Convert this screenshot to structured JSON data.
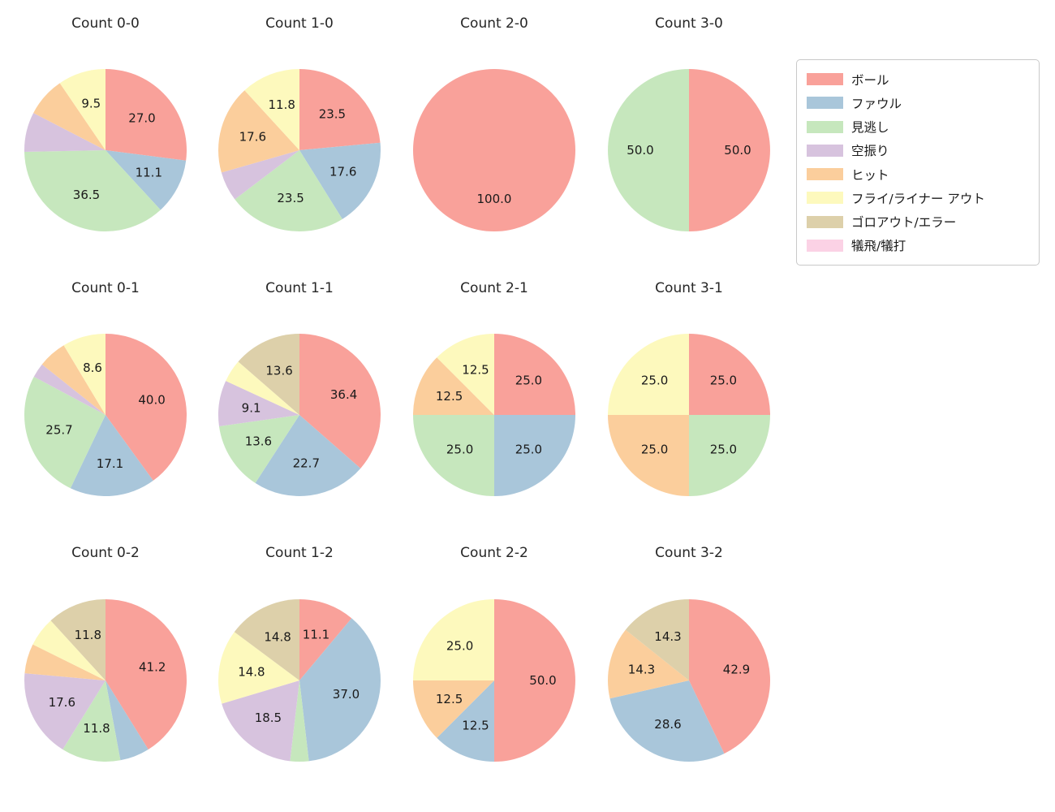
{
  "page": {
    "background": "#ffffff"
  },
  "legend": {
    "items": [
      {
        "label": "ボール",
        "color": "#f9a19a"
      },
      {
        "label": "ファウル",
        "color": "#a9c6da"
      },
      {
        "label": "見逃し",
        "color": "#c6e7bd"
      },
      {
        "label": "空振り",
        "color": "#d7c3de"
      },
      {
        "label": "ヒット",
        "color": "#fbce9c"
      },
      {
        "label": "フライ/ライナー アウト",
        "color": "#fdf9bd"
      },
      {
        "label": "ゴロアウト/エラー",
        "color": "#ddd0aa"
      },
      {
        "label": "犠飛/犠打",
        "color": "#fbd2e5"
      }
    ]
  },
  "chart_data": [
    {
      "type": "pie",
      "title": "Count 0-0",
      "position": {
        "row": 0,
        "col": 0
      },
      "start": "top",
      "direction": "clockwise",
      "slices": [
        {
          "category": "ボール",
          "value": 27.0,
          "text": "27.0"
        },
        {
          "category": "ファウル",
          "value": 11.1,
          "text": "11.1"
        },
        {
          "category": "見逃し",
          "value": 36.5,
          "text": "36.5"
        },
        {
          "category": "空振り",
          "value": 7.9,
          "text": ""
        },
        {
          "category": "ヒット",
          "value": 7.9,
          "text": ""
        },
        {
          "category": "フライ/ライナー アウト",
          "value": 9.5,
          "text": "9.5"
        }
      ]
    },
    {
      "type": "pie",
      "title": "Count 1-0",
      "position": {
        "row": 0,
        "col": 1
      },
      "start": "top",
      "direction": "clockwise",
      "slices": [
        {
          "category": "ボール",
          "value": 23.5,
          "text": "23.5"
        },
        {
          "category": "ファウル",
          "value": 17.6,
          "text": "17.6"
        },
        {
          "category": "見逃し",
          "value": 23.5,
          "text": "23.5"
        },
        {
          "category": "空振り",
          "value": 5.9,
          "text": ""
        },
        {
          "category": "ヒット",
          "value": 17.6,
          "text": "17.6"
        },
        {
          "category": "フライ/ライナー アウト",
          "value": 11.8,
          "text": "11.8"
        }
      ]
    },
    {
      "type": "pie",
      "title": "Count 2-0",
      "position": {
        "row": 0,
        "col": 2
      },
      "start": "top",
      "direction": "clockwise",
      "slices": [
        {
          "category": "ボール",
          "value": 100.0,
          "text": "100.0"
        }
      ]
    },
    {
      "type": "pie",
      "title": "Count 3-0",
      "position": {
        "row": 0,
        "col": 3
      },
      "start": "top",
      "direction": "clockwise",
      "slices": [
        {
          "category": "ボール",
          "value": 50.0,
          "text": "50.0"
        },
        {
          "category": "見逃し",
          "value": 50.0,
          "text": "50.0"
        }
      ]
    },
    {
      "type": "pie",
      "title": "Count 0-1",
      "position": {
        "row": 1,
        "col": 0
      },
      "start": "top",
      "direction": "clockwise",
      "slices": [
        {
          "category": "ボール",
          "value": 40.0,
          "text": "40.0"
        },
        {
          "category": "ファウル",
          "value": 17.1,
          "text": "17.1"
        },
        {
          "category": "見逃し",
          "value": 25.7,
          "text": "25.7"
        },
        {
          "category": "空振り",
          "value": 2.9,
          "text": ""
        },
        {
          "category": "ヒット",
          "value": 5.7,
          "text": ""
        },
        {
          "category": "フライ/ライナー アウト",
          "value": 8.6,
          "text": "8.6"
        }
      ]
    },
    {
      "type": "pie",
      "title": "Count 1-1",
      "position": {
        "row": 1,
        "col": 1
      },
      "start": "top",
      "direction": "clockwise",
      "slices": [
        {
          "category": "ボール",
          "value": 36.4,
          "text": "36.4"
        },
        {
          "category": "ファウル",
          "value": 22.7,
          "text": "22.7"
        },
        {
          "category": "見逃し",
          "value": 13.6,
          "text": "13.6"
        },
        {
          "category": "空振り",
          "value": 9.1,
          "text": "9.1"
        },
        {
          "category": "フライ/ライナー アウト",
          "value": 4.5,
          "text": ""
        },
        {
          "category": "ゴロアウト/エラー",
          "value": 13.6,
          "text": "13.6"
        }
      ]
    },
    {
      "type": "pie",
      "title": "Count 2-1",
      "position": {
        "row": 1,
        "col": 2
      },
      "start": "top",
      "direction": "clockwise",
      "slices": [
        {
          "category": "ボール",
          "value": 25.0,
          "text": "25.0"
        },
        {
          "category": "ファウル",
          "value": 25.0,
          "text": "25.0"
        },
        {
          "category": "見逃し",
          "value": 25.0,
          "text": "25.0"
        },
        {
          "category": "ヒット",
          "value": 12.5,
          "text": "12.5"
        },
        {
          "category": "フライ/ライナー アウト",
          "value": 12.5,
          "text": "12.5"
        }
      ]
    },
    {
      "type": "pie",
      "title": "Count 3-1",
      "position": {
        "row": 1,
        "col": 3
      },
      "start": "top",
      "direction": "clockwise",
      "slices": [
        {
          "category": "ボール",
          "value": 25.0,
          "text": "25.0"
        },
        {
          "category": "見逃し",
          "value": 25.0,
          "text": "25.0"
        },
        {
          "category": "ヒット",
          "value": 25.0,
          "text": "25.0"
        },
        {
          "category": "フライ/ライナー アウト",
          "value": 25.0,
          "text": "25.0"
        }
      ]
    },
    {
      "type": "pie",
      "title": "Count 0-2",
      "position": {
        "row": 2,
        "col": 0
      },
      "start": "top",
      "direction": "clockwise",
      "slices": [
        {
          "category": "ボール",
          "value": 41.2,
          "text": "41.2"
        },
        {
          "category": "ファウル",
          "value": 5.9,
          "text": ""
        },
        {
          "category": "見逃し",
          "value": 11.8,
          "text": "11.8"
        },
        {
          "category": "空振り",
          "value": 17.6,
          "text": "17.6"
        },
        {
          "category": "ヒット",
          "value": 5.9,
          "text": ""
        },
        {
          "category": "フライ/ライナー アウト",
          "value": 5.9,
          "text": ""
        },
        {
          "category": "ゴロアウト/エラー",
          "value": 11.8,
          "text": "11.8"
        }
      ]
    },
    {
      "type": "pie",
      "title": "Count 1-2",
      "position": {
        "row": 2,
        "col": 1
      },
      "start": "top",
      "direction": "clockwise",
      "slices": [
        {
          "category": "ボール",
          "value": 11.1,
          "text": "11.1"
        },
        {
          "category": "ファウル",
          "value": 37.0,
          "text": "37.0"
        },
        {
          "category": "見逃し",
          "value": 3.7,
          "text": ""
        },
        {
          "category": "空振り",
          "value": 18.5,
          "text": "18.5"
        },
        {
          "category": "フライ/ライナー アウト",
          "value": 14.8,
          "text": "14.8"
        },
        {
          "category": "ゴロアウト/エラー",
          "value": 14.8,
          "text": "14.8"
        }
      ]
    },
    {
      "type": "pie",
      "title": "Count 2-2",
      "position": {
        "row": 2,
        "col": 2
      },
      "start": "top",
      "direction": "clockwise",
      "slices": [
        {
          "category": "ボール",
          "value": 50.0,
          "text": "50.0"
        },
        {
          "category": "ファウル",
          "value": 12.5,
          "text": "12.5"
        },
        {
          "category": "ヒット",
          "value": 12.5,
          "text": "12.5"
        },
        {
          "category": "フライ/ライナー アウト",
          "value": 25.0,
          "text": "25.0"
        }
      ]
    },
    {
      "type": "pie",
      "title": "Count 3-2",
      "position": {
        "row": 2,
        "col": 3
      },
      "start": "top",
      "direction": "clockwise",
      "slices": [
        {
          "category": "ボール",
          "value": 42.9,
          "text": "42.9"
        },
        {
          "category": "ファウル",
          "value": 28.6,
          "text": "28.6"
        },
        {
          "category": "ヒット",
          "value": 14.3,
          "text": "14.3"
        },
        {
          "category": "ゴロアウト/エラー",
          "value": 14.3,
          "text": "14.3"
        }
      ]
    }
  ]
}
